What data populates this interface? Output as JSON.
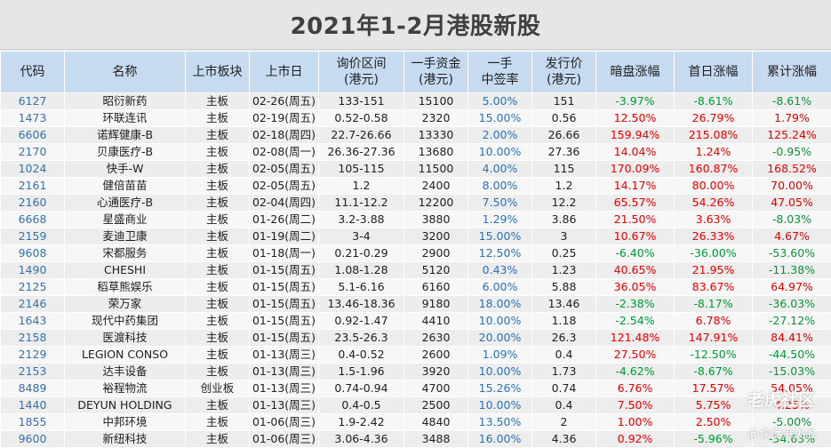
{
  "title": "2021年1-2月港股新股",
  "headers": [
    [
      "代码"
    ],
    [
      "名称"
    ],
    [
      "上市板块"
    ],
    [
      "上市日"
    ],
    [
      "询价区间",
      "(港元)"
    ],
    [
      "一手资金",
      "(港元)"
    ],
    [
      "一手",
      "中签率"
    ],
    [
      "发行价",
      "(港元)"
    ],
    [
      "暗盘涨幅"
    ],
    [
      "首日涨幅"
    ],
    [
      "累计涨幅"
    ]
  ],
  "colors": {
    "up": "#e60000",
    "down": "#009933",
    "header_bg": "#c6dbef"
  },
  "rows": [
    {
      "code": "6127",
      "name": "昭衍新药",
      "board": "主板",
      "date": "02-26(周五)",
      "range": "133-151",
      "lot": "15100",
      "rate": "5.00%",
      "price": "151",
      "dark": "-3.97%",
      "first": "-8.61%",
      "cum": "-8.61%"
    },
    {
      "code": "1473",
      "name": "环联连讯",
      "board": "主板",
      "date": "02-19(周五)",
      "range": "0.52-0.58",
      "lot": "2320",
      "rate": "15.00%",
      "price": "0.56",
      "dark": "12.50%",
      "first": "26.79%",
      "cum": "1.79%"
    },
    {
      "code": "6606",
      "name": "诺辉健康-B",
      "board": "主板",
      "date": "02-18(周四)",
      "range": "22.7-26.66",
      "lot": "13330",
      "rate": "2.00%",
      "price": "26.66",
      "dark": "159.94%",
      "first": "215.08%",
      "cum": "125.24%"
    },
    {
      "code": "2170",
      "name": "贝康医疗-B",
      "board": "主板",
      "date": "02-08(周一)",
      "range": "26.36-27.36",
      "lot": "13680",
      "rate": "10.00%",
      "price": "27.36",
      "dark": "14.04%",
      "first": "1.24%",
      "cum": "-0.95%"
    },
    {
      "code": "1024",
      "name": "快手-W",
      "board": "主板",
      "date": "02-05(周五)",
      "range": "105-115",
      "lot": "11500",
      "rate": "4.00%",
      "price": "115",
      "dark": "170.09%",
      "first": "160.87%",
      "cum": "168.52%"
    },
    {
      "code": "2161",
      "name": "健倍苗苗",
      "board": "主板",
      "date": "02-05(周五)",
      "range": "1.2",
      "lot": "2400",
      "rate": "8.00%",
      "price": "1.2",
      "dark": "14.17%",
      "first": "80.00%",
      "cum": "70.00%"
    },
    {
      "code": "2160",
      "name": "心通医疗-B",
      "board": "主板",
      "date": "02-04(周四)",
      "range": "11.1-12.2",
      "lot": "12200",
      "rate": "7.50%",
      "price": "12.2",
      "dark": "65.57%",
      "first": "54.26%",
      "cum": "47.05%"
    },
    {
      "code": "6668",
      "name": "星盛商业",
      "board": "主板",
      "date": "01-26(周二)",
      "range": "3.2-3.88",
      "lot": "3880",
      "rate": "1.29%",
      "price": "3.86",
      "dark": "21.50%",
      "first": "3.63%",
      "cum": "-8.03%"
    },
    {
      "code": "2159",
      "name": "麦迪卫康",
      "board": "主板",
      "date": "01-19(周二)",
      "range": "3-4",
      "lot": "3200",
      "rate": "15.00%",
      "price": "3",
      "dark": "10.67%",
      "first": "26.33%",
      "cum": "4.67%"
    },
    {
      "code": "9608",
      "name": "宋都服务",
      "board": "主板",
      "date": "01-18(周一)",
      "range": "0.21-0.29",
      "lot": "2900",
      "rate": "12.50%",
      "price": "0.25",
      "dark": "-6.40%",
      "first": "-36.00%",
      "cum": "-53.60%"
    },
    {
      "code": "1490",
      "name": "CHESHI",
      "board": "主板",
      "date": "01-15(周五)",
      "range": "1.08-1.28",
      "lot": "5120",
      "rate": "0.43%",
      "price": "1.23",
      "dark": "40.65%",
      "first": "21.95%",
      "cum": "-11.38%"
    },
    {
      "code": "2125",
      "name": "稻草熊娱乐",
      "board": "主板",
      "date": "01-15(周五)",
      "range": "5.1-6.16",
      "lot": "6160",
      "rate": "6.00%",
      "price": "5.88",
      "dark": "36.05%",
      "first": "83.67%",
      "cum": "64.97%"
    },
    {
      "code": "2146",
      "name": "荣万家",
      "board": "主板",
      "date": "01-15(周五)",
      "range": "13.46-18.36",
      "lot": "9180",
      "rate": "18.00%",
      "price": "13.46",
      "dark": "-2.38%",
      "first": "-8.17%",
      "cum": "-36.03%"
    },
    {
      "code": "1643",
      "name": "现代中药集团",
      "board": "主板",
      "date": "01-15(周五)",
      "range": "0.92-1.47",
      "lot": "4410",
      "rate": "10.00%",
      "price": "1.18",
      "dark": "-2.54%",
      "first": "6.78%",
      "cum": "-27.12%"
    },
    {
      "code": "2158",
      "name": "医渡科技",
      "board": "主板",
      "date": "01-15(周五)",
      "range": "23.5-26.3",
      "lot": "2630",
      "rate": "20.00%",
      "price": "26.3",
      "dark": "121.48%",
      "first": "147.91%",
      "cum": "84.41%"
    },
    {
      "code": "2129",
      "name": "LEGION CONSO",
      "board": "主板",
      "date": "01-13(周三)",
      "range": "0.4-0.52",
      "lot": "2600",
      "rate": "1.09%",
      "price": "0.4",
      "dark": "27.50%",
      "first": "-12.50%",
      "cum": "-44.50%"
    },
    {
      "code": "2153",
      "name": "达丰设备",
      "board": "主板",
      "date": "01-13(周三)",
      "range": "1.5-1.96",
      "lot": "3920",
      "rate": "10.00%",
      "price": "1.73",
      "dark": "-4.62%",
      "first": "-8.67%",
      "cum": "-15.03%"
    },
    {
      "code": "8489",
      "name": "裕程物流",
      "board": "创业板",
      "date": "01-13(周三)",
      "range": "0.74-0.94",
      "lot": "4700",
      "rate": "15.26%",
      "price": "0.74",
      "dark": "6.76%",
      "first": "17.57%",
      "cum": "54.05%"
    },
    {
      "code": "1440",
      "name": "DEYUN HOLDING",
      "board": "主板",
      "date": "01-13(周三)",
      "range": "0.4-0.5",
      "lot": "2500",
      "rate": "10.00%",
      "price": "0.4",
      "dark": "7.50%",
      "first": "5.75%",
      "cum": "4.25%"
    },
    {
      "code": "1855",
      "name": "中邦环境",
      "board": "主板",
      "date": "01-06(周三)",
      "range": "1.9-2.42",
      "lot": "4840",
      "rate": "13.50%",
      "price": "2",
      "dark": "1.00%",
      "first": "2.50%",
      "cum": "-5.00%"
    },
    {
      "code": "9600",
      "name": "新纽科技",
      "board": "主板",
      "date": "01-06(周三)",
      "range": "3.06-4.36",
      "lot": "3488",
      "rate": "16.00%",
      "price": "4.36",
      "dark": "0.92%",
      "first": "-5.96%",
      "cum": "-34.63%"
    }
  ],
  "watermark": {
    "main": "老虎社区",
    "sub": "@读懂港美股"
  }
}
